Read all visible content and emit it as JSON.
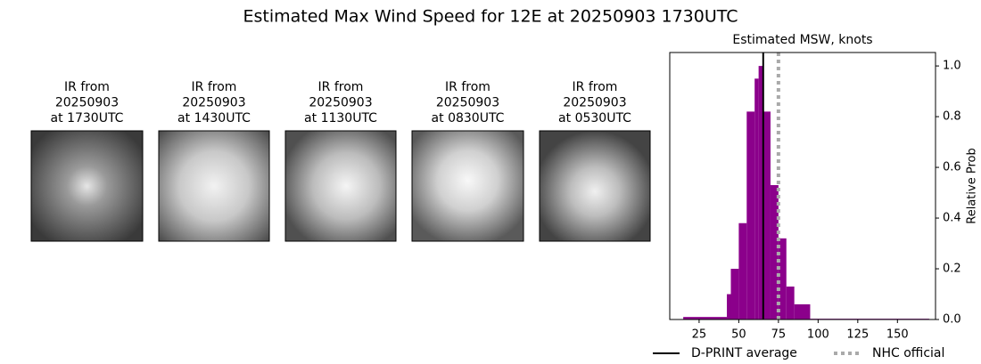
{
  "title": "Estimated Max Wind Speed for 12E at 20250903 1730UTC",
  "ir_panels": [
    {
      "lines": [
        "IR from",
        "20250903",
        "at 1730UTC"
      ]
    },
    {
      "lines": [
        "IR from",
        "20250903",
        "at 1430UTC"
      ]
    },
    {
      "lines": [
        "IR from",
        "20250903",
        "at 1130UTC"
      ]
    },
    {
      "lines": [
        "IR from",
        "20250903",
        "at 0830UTC"
      ]
    },
    {
      "lines": [
        "IR from",
        "20250903",
        "at 0530UTC"
      ]
    }
  ],
  "chart_data": {
    "type": "histogram",
    "title": "Estimated MSW, knots",
    "ylabel": "Relative Prob",
    "bins": [
      15,
      42.5,
      45,
      50,
      55,
      60,
      62.5,
      65,
      70,
      75,
      80,
      85,
      95,
      170
    ],
    "values": [
      0.01,
      0.1,
      0.2,
      0.38,
      0.82,
      0.95,
      1.0,
      0.82,
      0.53,
      0.32,
      0.13,
      0.06,
      0.003
    ],
    "color": "#8b008b",
    "xlim": [
      6.5,
      174
    ],
    "ylim": [
      0,
      1.053
    ],
    "xticks": [
      25,
      50,
      75,
      100,
      125,
      150
    ],
    "yticks": [
      {
        "value": 0,
        "label": "0.0"
      },
      {
        "value": 0.2,
        "label": "0.2"
      },
      {
        "value": 0.4,
        "label": "0.4"
      },
      {
        "value": 0.6,
        "label": "0.6"
      },
      {
        "value": 0.8,
        "label": "0.8"
      },
      {
        "value": 1.0,
        "label": "1.0"
      }
    ],
    "lines": [
      {
        "name": "D-PRINT average",
        "value": 65.4,
        "color": "#000000",
        "style": "solid"
      },
      {
        "name": "NHC official",
        "value": 75,
        "color": "#aaaaaa",
        "style": "dotted"
      }
    ],
    "legend": "lower center"
  }
}
